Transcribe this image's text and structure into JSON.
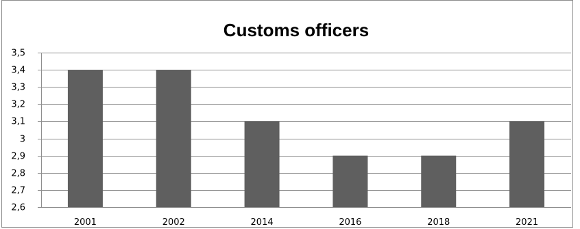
{
  "chart_data": {
    "type": "bar",
    "title": "Customs officers",
    "xlabel": "",
    "ylabel": "",
    "categories": [
      "2001",
      "2002",
      "2014",
      "2016",
      "2018",
      "2021"
    ],
    "values": [
      3.4,
      3.4,
      3.1,
      2.9,
      2.9,
      3.1
    ],
    "ylim": [
      2.6,
      3.5
    ],
    "yticks": [
      2.6,
      2.7,
      2.8,
      2.9,
      3.0,
      3.1,
      3.2,
      3.3,
      3.4,
      3.5
    ],
    "ytick_labels": [
      "2,6",
      "2,7",
      "2,8",
      "2,9",
      "3",
      "3,1",
      "3,2",
      "3,3",
      "3,4",
      "3,5"
    ],
    "grid": true,
    "legend": "none",
    "colors": {
      "bar": "#5f5f5f",
      "grid": "#8e8e8e",
      "axis": "#8e8e8e"
    }
  }
}
